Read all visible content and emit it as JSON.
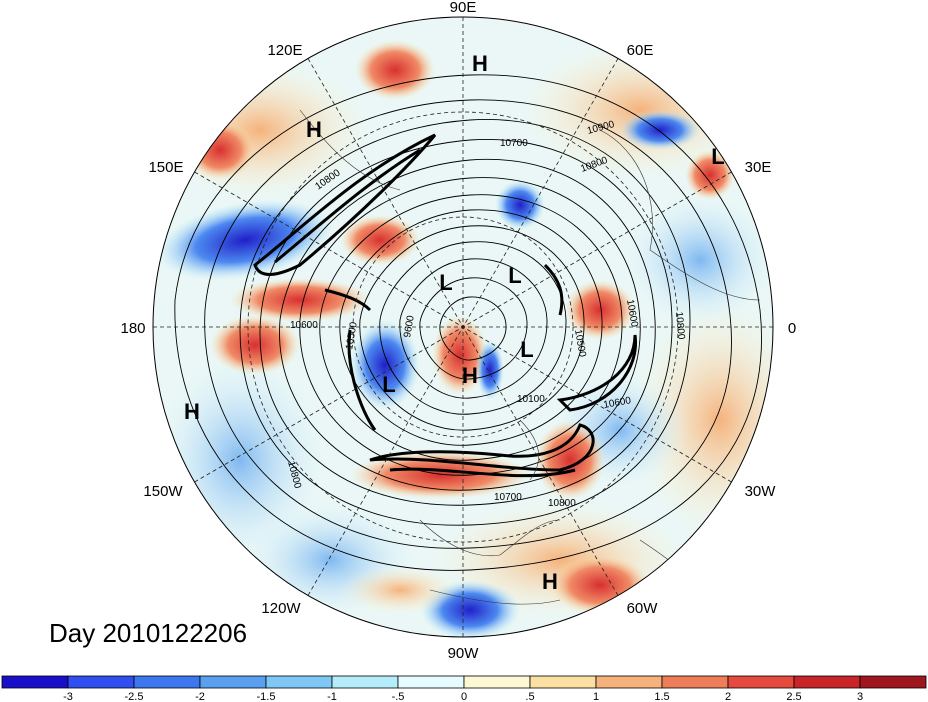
{
  "title": "Day 2010122206",
  "longitude_labels": [
    "90E",
    "60E",
    "30E",
    "0",
    "30W",
    "60W",
    "90W",
    "120W",
    "150W",
    "180",
    "150E",
    "120E"
  ],
  "pressure_systems": [
    {
      "type": "H",
      "near": "90E"
    },
    {
      "type": "H",
      "near": "120E"
    },
    {
      "type": "L",
      "near": "30E"
    },
    {
      "type": "L",
      "near": "pole"
    },
    {
      "type": "L",
      "near": "pole"
    },
    {
      "type": "L",
      "near": "pole"
    },
    {
      "type": "H",
      "near": "pole"
    },
    {
      "type": "L",
      "near": "120W"
    },
    {
      "type": "H",
      "near": "150W"
    },
    {
      "type": "H",
      "near": "60W"
    }
  ],
  "contour_labels": [
    "10900",
    "10700",
    "10800",
    "10800",
    "10600",
    "9600",
    "10500",
    "10600",
    "10500",
    "10800",
    "10100",
    "10600",
    "10700",
    "10800",
    "10800"
  ],
  "colorbar": {
    "ticks": [
      "-3",
      "-2.5",
      "-2",
      "-1.5",
      "-1",
      "-.5",
      "0",
      ".5",
      "1",
      "1.5",
      "2",
      "2.5",
      "3"
    ],
    "colors": [
      "#1a0fc8",
      "#2f4ff0",
      "#3d77f0",
      "#5a9ff0",
      "#7fc8f5",
      "#b4ecfa",
      "#e6fbfd",
      "#fdf8d4",
      "#fbe0a3",
      "#f5b27c",
      "#ee7d5a",
      "#e64a3e",
      "#c8242a",
      "#a0161f"
    ]
  }
}
